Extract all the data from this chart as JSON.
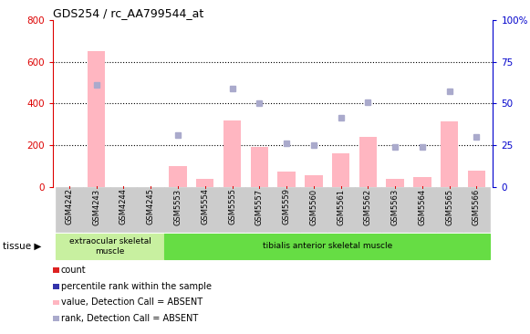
{
  "title": "GDS254 / rc_AA799544_at",
  "samples": [
    "GSM4242",
    "GSM4243",
    "GSM4244",
    "GSM4245",
    "GSM5553",
    "GSM5554",
    "GSM5555",
    "GSM5557",
    "GSM5559",
    "GSM5560",
    "GSM5561",
    "GSM5562",
    "GSM5563",
    "GSM5564",
    "GSM5565",
    "GSM5566"
  ],
  "bar_values_absent": [
    0,
    650,
    0,
    0,
    100,
    40,
    320,
    190,
    75,
    55,
    160,
    240,
    40,
    50,
    315,
    80
  ],
  "dot_values_absent": [
    0,
    490,
    0,
    0,
    250,
    0,
    470,
    400,
    210,
    200,
    330,
    405,
    190,
    190,
    460,
    240
  ],
  "tissue_groups": [
    {
      "label": "extraocular skeletal\nmuscle",
      "start": 0,
      "end": 4,
      "color": "#C8F0A0"
    },
    {
      "label": "tibialis anterior skeletal muscle",
      "start": 4,
      "end": 16,
      "color": "#66DD44"
    }
  ],
  "ylim_left": [
    0,
    800
  ],
  "ylim_right": [
    0,
    100
  ],
  "yticks_left": [
    0,
    200,
    400,
    600,
    800
  ],
  "yticks_right": [
    0,
    25,
    50,
    75,
    100
  ],
  "bar_color_absent": "#FFB6C1",
  "dot_color_absent": "#AAAACC",
  "dot_color_present": "#3333AA",
  "bar_color_present": "#DD2222",
  "bg_color": "#FFFFFF",
  "left_axis_color": "#DD0000",
  "right_axis_color": "#0000CC",
  "xtick_bg": "#CCCCCC",
  "legend": [
    {
      "color": "#DD2222",
      "label": "count"
    },
    {
      "color": "#3333AA",
      "label": "percentile rank within the sample"
    },
    {
      "color": "#FFB6C1",
      "label": "value, Detection Call = ABSENT"
    },
    {
      "color": "#AAAACC",
      "label": "rank, Detection Call = ABSENT"
    }
  ]
}
